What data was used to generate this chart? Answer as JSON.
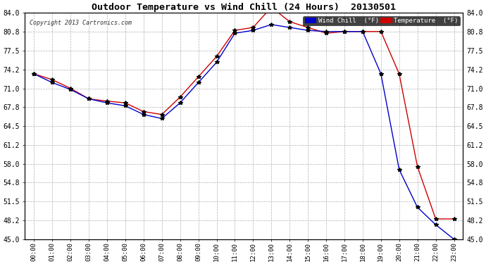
{
  "title": "Outdoor Temperature vs Wind Chill (24 Hours)  20130501",
  "copyright": "Copyright 2013 Cartronics.com",
  "background_color": "#ffffff",
  "plot_bg_color": "#ffffff",
  "grid_color": "#b0b0b0",
  "x_labels": [
    "00:00",
    "01:00",
    "02:00",
    "03:00",
    "04:00",
    "05:00",
    "06:00",
    "07:00",
    "08:00",
    "09:00",
    "10:00",
    "11:00",
    "12:00",
    "13:00",
    "14:00",
    "15:00",
    "16:00",
    "17:00",
    "18:00",
    "19:00",
    "20:00",
    "21:00",
    "22:00",
    "23:00"
  ],
  "temperature": [
    73.5,
    72.5,
    71.0,
    69.2,
    68.8,
    68.5,
    67.0,
    66.5,
    69.5,
    73.0,
    76.5,
    81.0,
    81.5,
    85.0,
    82.5,
    81.5,
    80.5,
    80.8,
    80.8,
    80.8,
    73.5,
    57.5,
    48.5,
    48.5
  ],
  "wind_chill": [
    73.5,
    72.0,
    70.8,
    69.2,
    68.5,
    68.0,
    66.5,
    65.8,
    68.5,
    72.0,
    75.5,
    80.5,
    81.0,
    82.0,
    81.5,
    81.0,
    80.8,
    80.8,
    80.8,
    73.5,
    57.0,
    50.5,
    47.5,
    45.0
  ],
  "ylim_min": 45.0,
  "ylim_max": 84.0,
  "yticks": [
    45.0,
    48.2,
    51.5,
    54.8,
    58.0,
    61.2,
    64.5,
    67.8,
    71.0,
    74.2,
    77.5,
    80.8,
    84.0
  ],
  "temp_color": "#cc0000",
  "wind_chill_color": "#0000cc",
  "legend_wind_bg": "#0000cc",
  "legend_temp_bg": "#cc0000",
  "marker": "*",
  "marker_color": "#000000",
  "marker_size": 4
}
